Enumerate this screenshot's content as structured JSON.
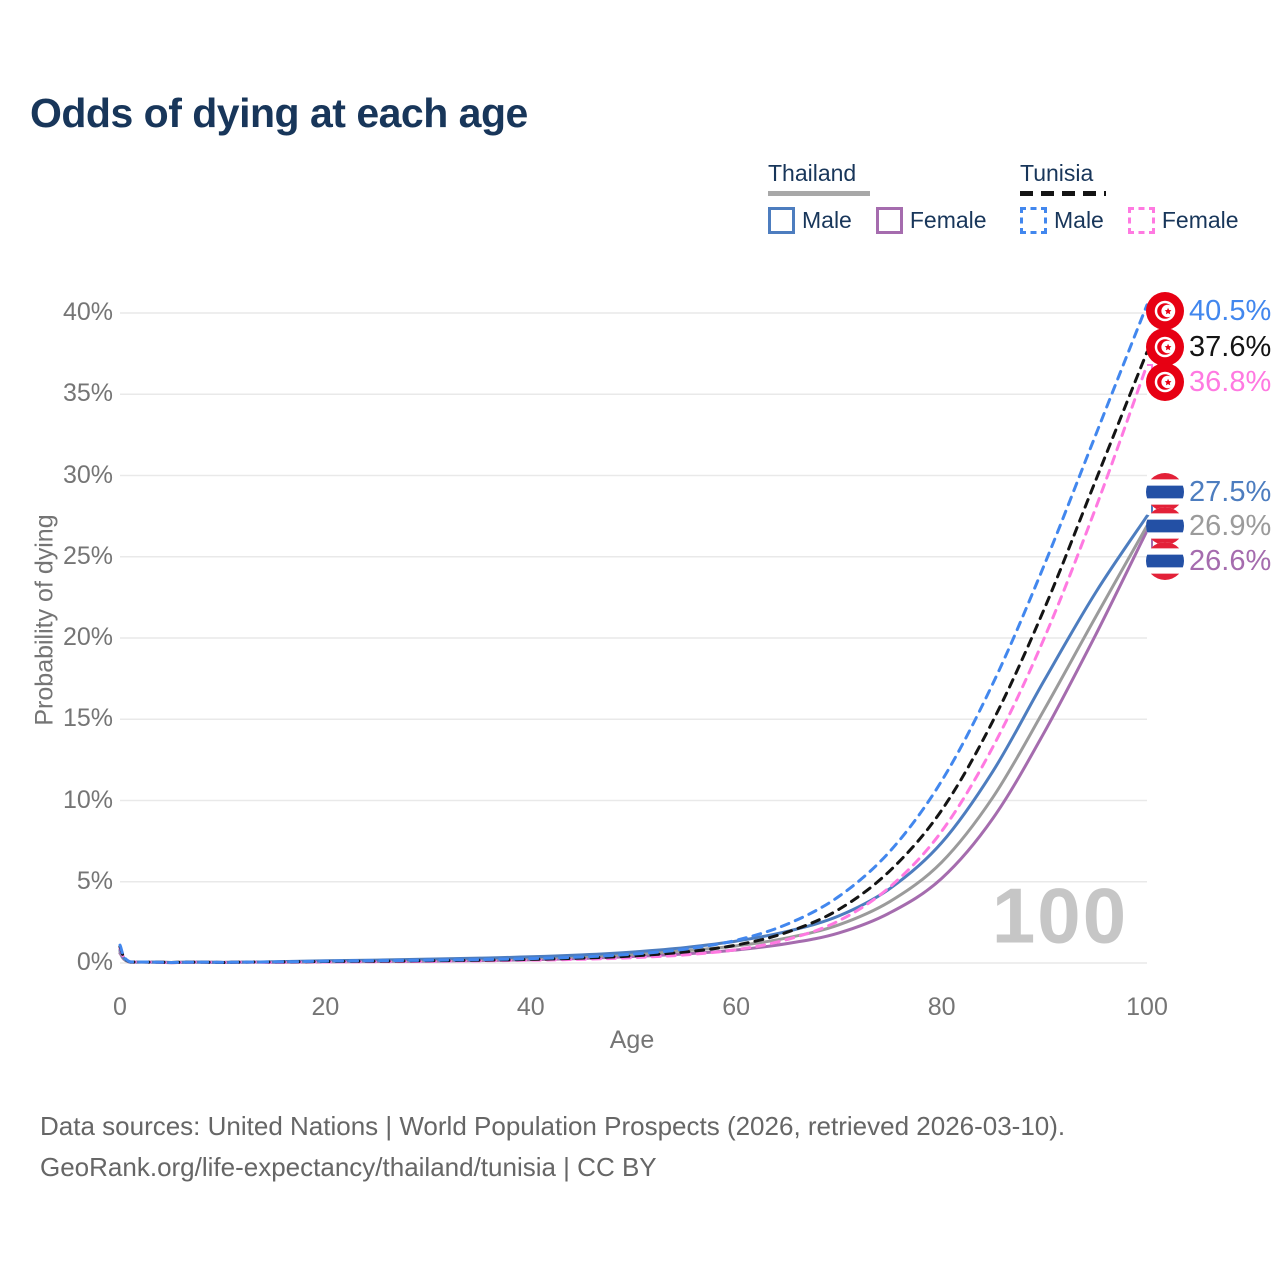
{
  "title": "Odds of dying at each age",
  "watermark": "100",
  "legend": {
    "groups": [
      {
        "label": "Thailand",
        "line_style": "solid",
        "underline_color": "#a8a8a8",
        "items": [
          {
            "label": "Male",
            "color": "#4d7dbf"
          },
          {
            "label": "Female",
            "color": "#a56cae"
          }
        ]
      },
      {
        "label": "Tunisia",
        "line_style": "dashed",
        "underline_color": "#141414",
        "items": [
          {
            "label": "Male",
            "color": "#4287ee"
          },
          {
            "label": "Female",
            "color": "#ff79e1"
          }
        ]
      }
    ]
  },
  "chart_data": {
    "type": "line",
    "title": "Odds of dying at each age",
    "xlabel": "Age",
    "ylabel": "Probability of dying",
    "xlim": [
      0,
      100
    ],
    "ylim": [
      0,
      40
    ],
    "xticks": [
      0,
      20,
      40,
      60,
      80,
      100
    ],
    "yticks": [
      0,
      5,
      10,
      15,
      20,
      25,
      30,
      35,
      40
    ],
    "ytick_suffix": "%",
    "grid": "horizontal-only",
    "x_ages": [
      0,
      1,
      5,
      10,
      15,
      20,
      25,
      30,
      35,
      40,
      45,
      50,
      55,
      60,
      65,
      70,
      75,
      80,
      85,
      90,
      95,
      100
    ],
    "series": [
      {
        "name": "Thailand Female",
        "country": "Thailand",
        "sex": "Female",
        "color": "#a56cae",
        "dashed": false,
        "values": [
          0.6,
          0.05,
          0.02,
          0.03,
          0.04,
          0.07,
          0.09,
          0.11,
          0.15,
          0.2,
          0.28,
          0.4,
          0.56,
          0.8,
          1.2,
          1.85,
          3.1,
          5.2,
          8.9,
          14.2,
          20.2,
          26.6
        ]
      },
      {
        "name": "Thailand Both sexes",
        "country": "Thailand",
        "sex": "Both",
        "color": "#9b9b9b",
        "dashed": false,
        "values": [
          0.7,
          0.05,
          0.03,
          0.03,
          0.06,
          0.1,
          0.13,
          0.17,
          0.22,
          0.29,
          0.39,
          0.53,
          0.75,
          1.05,
          1.55,
          2.35,
          3.8,
          6.2,
          10.2,
          15.6,
          21.3,
          26.9
        ]
      },
      {
        "name": "Thailand Male",
        "country": "Thailand",
        "sex": "Male",
        "color": "#4d7dbf",
        "dashed": false,
        "values": [
          0.8,
          0.06,
          0.03,
          0.04,
          0.08,
          0.14,
          0.18,
          0.24,
          0.3,
          0.38,
          0.5,
          0.68,
          0.95,
          1.35,
          1.95,
          2.9,
          4.6,
          7.4,
          11.8,
          17.4,
          22.8,
          27.5
        ]
      },
      {
        "name": "Tunisia Female",
        "country": "Tunisia",
        "sex": "Female",
        "color": "#ff79e1",
        "dashed": true,
        "values": [
          0.9,
          0.06,
          0.02,
          0.03,
          0.04,
          0.06,
          0.08,
          0.1,
          0.13,
          0.17,
          0.23,
          0.33,
          0.5,
          0.82,
          1.45,
          2.6,
          4.7,
          8.1,
          13.3,
          20.0,
          28.0,
          36.8
        ]
      },
      {
        "name": "Tunisia Both sexes",
        "country": "Tunisia",
        "sex": "Both",
        "color": "#141414",
        "dashed": true,
        "values": [
          1.0,
          0.06,
          0.03,
          0.03,
          0.06,
          0.09,
          0.11,
          0.14,
          0.17,
          0.22,
          0.3,
          0.44,
          0.68,
          1.1,
          1.9,
          3.3,
          5.7,
          9.4,
          14.9,
          21.8,
          29.7,
          37.6
        ]
      },
      {
        "name": "Tunisia Male",
        "country": "Tunisia",
        "sex": "Male",
        "color": "#4287ee",
        "dashed": true,
        "values": [
          1.1,
          0.07,
          0.03,
          0.04,
          0.07,
          0.11,
          0.14,
          0.17,
          0.21,
          0.27,
          0.37,
          0.55,
          0.85,
          1.4,
          2.4,
          4.1,
          6.9,
          11.2,
          17.2,
          24.5,
          32.5,
          40.5
        ]
      }
    ],
    "end_labels": [
      {
        "value": "40.5%",
        "color": "#4287ee",
        "flag": "tunisia",
        "series": "Tunisia Male"
      },
      {
        "value": "37.6%",
        "color": "#141414",
        "flag": "tunisia",
        "series": "Tunisia Both sexes"
      },
      {
        "value": "36.8%",
        "color": "#ff79e1",
        "flag": "tunisia",
        "series": "Tunisia Female"
      },
      {
        "value": "27.5%",
        "color": "#4d7dbf",
        "flag": "thailand",
        "series": "Thailand Male"
      },
      {
        "value": "26.9%",
        "color": "#9b9b9b",
        "flag": "thailand",
        "series": "Thailand Both sexes"
      },
      {
        "value": "26.6%",
        "color": "#a56cae",
        "flag": "thailand",
        "series": "Thailand Female"
      }
    ]
  },
  "footer": {
    "line1": "Data sources: United Nations | World Population Prospects (2026, retrieved 2026-03-10).",
    "line2": "GeoRank.org/life-expectancy/thailand/tunisia | CC BY"
  }
}
